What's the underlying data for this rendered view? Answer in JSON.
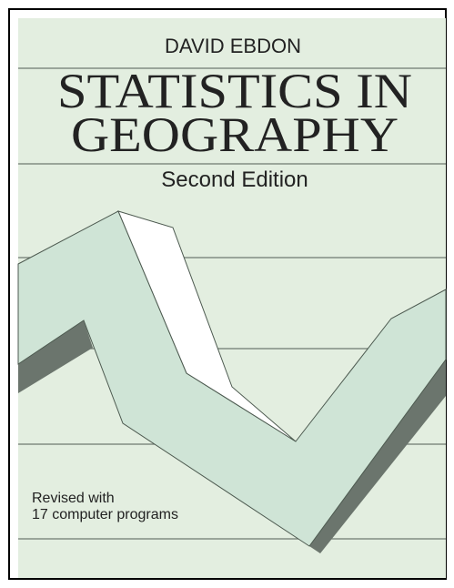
{
  "cover": {
    "author": "DAVID EBDON",
    "title_lines": [
      "STATISTICS IN",
      "GEOGRAPHY"
    ],
    "edition": "Second Edition",
    "note_lines": [
      "Revised with",
      "17 computer programs"
    ]
  }
}
